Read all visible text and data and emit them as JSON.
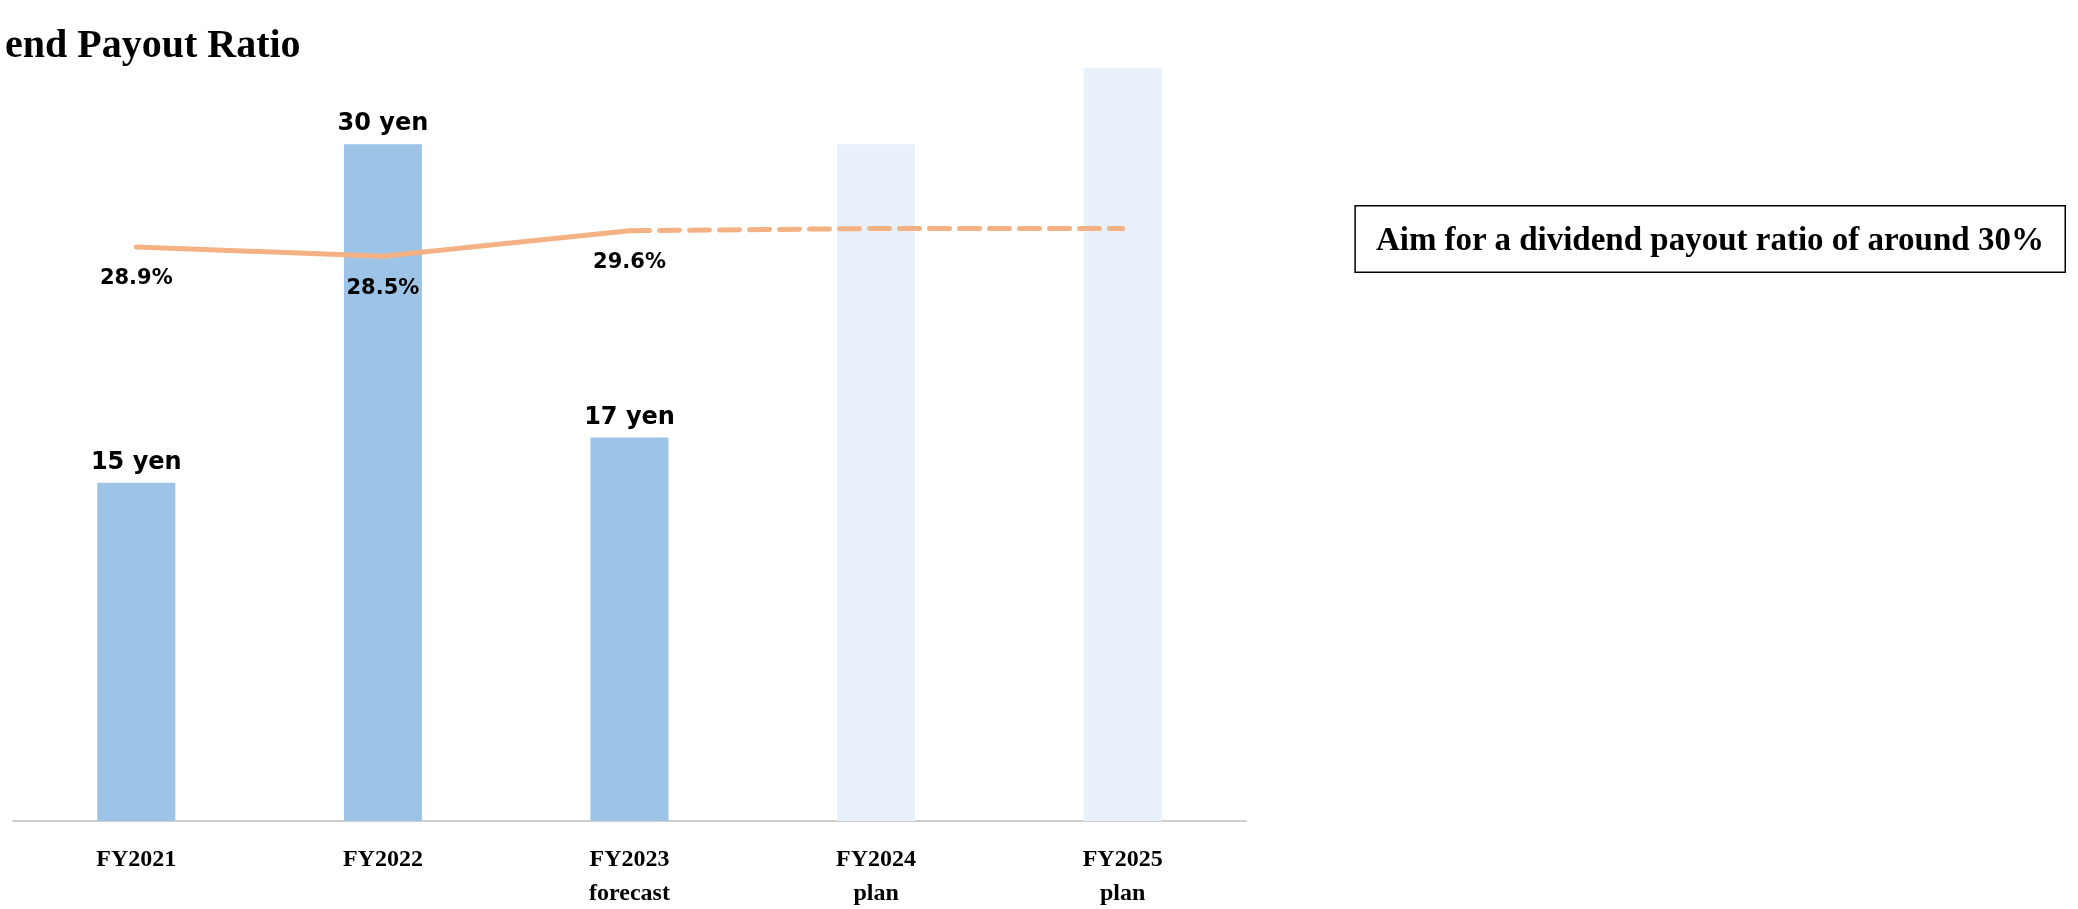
{
  "chart_data": {
    "type": "bar",
    "title": "end Payout Ratio",
    "categories": [
      "FY2021",
      "FY2022",
      "FY2023\nforecast",
      "FY2024\nplan",
      "FY2025\nplan"
    ],
    "series": [
      {
        "colors": [
          "#9dc3e6",
          "#9dc3e6",
          "#9dc3e6",
          "#e8f0f9",
          "#e8f0f9"
        ],
        "values": [
          15,
          30,
          17,
          30,
          33.4
        ],
        "value_labels": [
          "15 yen",
          "30 yen",
          "17 yen",
          null,
          null
        ]
      },
      {
        "type": "line",
        "axis": "y2",
        "color": "#f4b183",
        "line_style": "solid",
        "values": [
          28.9,
          28.5,
          29.6,
          null,
          null
        ],
        "value_labels": [
          "28.9%",
          "28.5%",
          "29.6%",
          null,
          null
        ]
      },
      {
        "type": "line",
        "axis": "y2",
        "color": "#f4b183",
        "line_style": "dashed",
        "values": [
          null,
          null,
          29.6,
          29.7,
          29.7
        ]
      }
    ],
    "tick_labels": "x",
    "grid": false,
    "marker": "none",
    "annotations": [
      "Aim for a dividend payout ratio of around 30%"
    ]
  }
}
